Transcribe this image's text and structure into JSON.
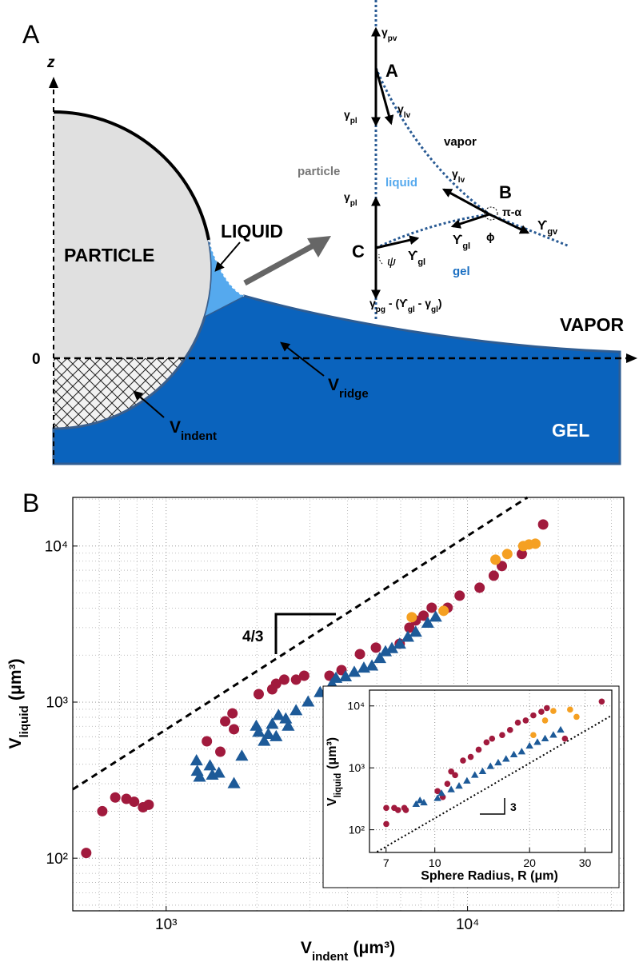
{
  "diagram": {
    "panel": "A",
    "z": "z",
    "zero": "0",
    "particle": "PARTICLE",
    "liquid": "LIQUID",
    "vapor": "VAPOR",
    "gel": "GEL",
    "v_ridge": {
      "text": "V",
      "sub": "ridge"
    },
    "v_indent": {
      "text": "V",
      "sub": "indent"
    },
    "detail": {
      "points": [
        "A",
        "B",
        "C"
      ],
      "regions": [
        "vapor",
        "particle",
        "liquid",
        "gel"
      ],
      "gamma_pv": {
        "text": "γ",
        "sub": "pv"
      },
      "gamma_pl_a": {
        "text": "γ",
        "sub": "pl"
      },
      "gamma_lv_a": {
        "text": "γ",
        "sub": "lv"
      },
      "gamma_lv_b": {
        "text": "γ",
        "sub": "lv"
      },
      "upsilon_gv": {
        "text": "ϒ",
        "sub": "gv"
      },
      "upsilon_gl_b": {
        "text": "ϒ",
        "sub": "gl"
      },
      "angle_b": "π-α",
      "phi": "ϕ",
      "gamma_pl_c": {
        "text": "γ",
        "sub": "pl"
      },
      "upsilon_gl_c": {
        "text": "ϒ",
        "sub": "gl"
      },
      "psi": "ψ",
      "bottom": [
        {
          "text": "γ"
        },
        {
          "sub": "pg"
        },
        {
          "text": " - (ϒ"
        },
        {
          "sub": "gl"
        },
        {
          "text": " - γ"
        },
        {
          "sub": "gl"
        },
        {
          "text": ")"
        }
      ]
    }
  },
  "chart_panel": "B",
  "chart_data": [
    {
      "type": "scatter",
      "log_x": true,
      "log_y": true,
      "grid": true,
      "xlabel": {
        "text": "V",
        "sub": "indent",
        "unit": "(μm³)"
      },
      "ylabel": {
        "text": "V",
        "sub": "liquid",
        "unit": "(μm³)"
      },
      "xlim": [
        490,
        33000
      ],
      "ylim": [
        46,
        20500
      ],
      "xticks": [
        {
          "value": 1000,
          "label": "10³"
        },
        {
          "value": 10000,
          "label": "10⁴"
        }
      ],
      "yticks": [
        {
          "value": 100,
          "label": "10²"
        },
        {
          "value": 1000,
          "label": "10³"
        },
        {
          "value": 10000,
          "label": "10⁴"
        }
      ],
      "xgrid": [
        600,
        700,
        800,
        900,
        2000,
        3000,
        4000,
        5000,
        6000,
        7000,
        8000,
        9000,
        20000,
        30000
      ],
      "ygrid": [
        50,
        60,
        70,
        80,
        90,
        200,
        300,
        400,
        500,
        600,
        700,
        800,
        900,
        2000,
        3000,
        4000,
        5000,
        6000,
        7000,
        8000,
        9000,
        20000
      ],
      "slope_label": "4/3",
      "series": [
        {
          "style": "dashed",
          "color": "#000000",
          "x": [
            490,
            15800
          ],
          "values": [
            276,
            20500
          ]
        },
        {
          "marker": "circle",
          "color": "#a11a3d",
          "x": [
            543,
            614,
            678,
            738,
            783,
            838,
            875,
            1365,
            1513,
            1570,
            1660,
            1679,
            2028,
            2249,
            2317,
            2465,
            2698,
            2871,
            3483,
            3819,
            4395,
            4966,
            5957,
            6412,
            6730,
            7145,
            7603,
            8590,
            9415,
            10965,
            12220,
            13000,
            15140,
            17820
          ],
          "values": [
            108,
            200,
            245,
            240,
            230,
            212,
            220,
            561,
            481,
            753,
            847,
            670,
            1125,
            1208,
            1312,
            1393,
            1393,
            1476,
            1476,
            1603,
            2031,
            2234,
            2366,
            2999,
            3335,
            3581,
            4027,
            4027,
            4808,
            5410,
            6457,
            7447,
            8892,
            13750
          ]
        },
        {
          "marker": "triangle",
          "color": "#1d5a98",
          "x": [
            1261,
            1268,
            1291,
            1398,
            1423,
            1496,
            1679,
            1783,
            1991,
            2028,
            2115,
            2183,
            2249,
            2317,
            2360,
            2494,
            2541,
            2698,
            2958,
            3243,
            3551,
            3660,
            3937,
            4210,
            4529,
            4817,
            5117,
            5343,
            5610,
            5957,
            6337,
            6730,
            7376,
            7838
          ],
          "values": [
            420,
            360,
            330,
            390,
            340,
            350,
            300,
            450,
            700,
            640,
            560,
            620,
            720,
            600,
            820,
            780,
            700,
            880,
            1000,
            1150,
            1300,
            1420,
            1450,
            1550,
            1650,
            1700,
            1900,
            2100,
            2200,
            2350,
            2600,
            2800,
            3200,
            3500
          ]
        },
        {
          "marker": "circle",
          "color": "#f5a022",
          "x": [
            6530,
            8330,
            12380,
            13550,
            15310,
            15990,
            16790
          ],
          "values": [
            3500,
            3846,
            8180,
            8892,
            10000,
            10240,
            10360
          ]
        }
      ]
    },
    {
      "type": "scatter",
      "log_x": true,
      "log_y": true,
      "grid": true,
      "xlabel": "Sphere Radius, R (μm)",
      "ylabel": {
        "text": "V",
        "sub": "liquid",
        "unit": "(μm³)"
      },
      "xlim": [
        6.2,
        36.5
      ],
      "ylim": [
        43,
        18000
      ],
      "xticks": [
        7,
        10,
        20,
        30
      ],
      "yticks": [
        {
          "value": 100,
          "label": "10²"
        },
        {
          "value": 1000,
          "label": "10³"
        },
        {
          "value": 10000,
          "label": "10⁴"
        }
      ],
      "slope_label": "3",
      "series": [
        {
          "style": "dotted",
          "color": "#000000",
          "x": [
            6.55,
            36.5
          ],
          "values": [
            44,
            7030
          ]
        },
        {
          "marker": "circle",
          "color": "#a11a3d",
          "x": [
            7.01,
            7.01,
            7.43,
            7.64,
            8.0,
            8.09,
            10.2,
            10.6,
            10.96,
            11.27,
            11.6,
            12.29,
            13.0,
            13.78,
            14.6,
            15.2,
            16.37,
            17.34,
            18.36,
            19.44,
            20.56,
            21.8,
            22.7,
            25.9,
            33.9
          ],
          "values": [
            124,
            225,
            225,
            208,
            225,
            208,
            421,
            338,
            551,
            873,
            762,
            1312,
            1500,
            1968,
            2582,
            2958,
            3383,
            4090,
            5360,
            5820,
            7030,
            8050,
            9220,
            2958,
            11770
          ]
        },
        {
          "marker": "triangle",
          "color": "#1d5a98",
          "x": [
            8.72,
            8.97,
            9.23,
            10.2,
            10.5,
            11.27,
            11.94,
            12.65,
            13.4,
            14.18,
            15.02,
            15.9,
            16.84,
            17.83,
            18.88,
            20.0,
            21.18,
            22.4,
            23.8,
            25.1
          ],
          "values": [
            258,
            296,
            273,
            321,
            387,
            444,
            508,
            614,
            762,
            873,
            1057,
            1208,
            1384,
            1629,
            1815,
            2253,
            2582,
            2958,
            3383,
            4090
          ]
        },
        {
          "marker": "circle",
          "color": "#f5a022",
          "x": [
            20.56,
            22.4,
            23.8,
            26.9,
            28.2
          ],
          "values": [
            3383,
            5820,
            8280,
            8730,
            6670
          ]
        }
      ]
    }
  ]
}
